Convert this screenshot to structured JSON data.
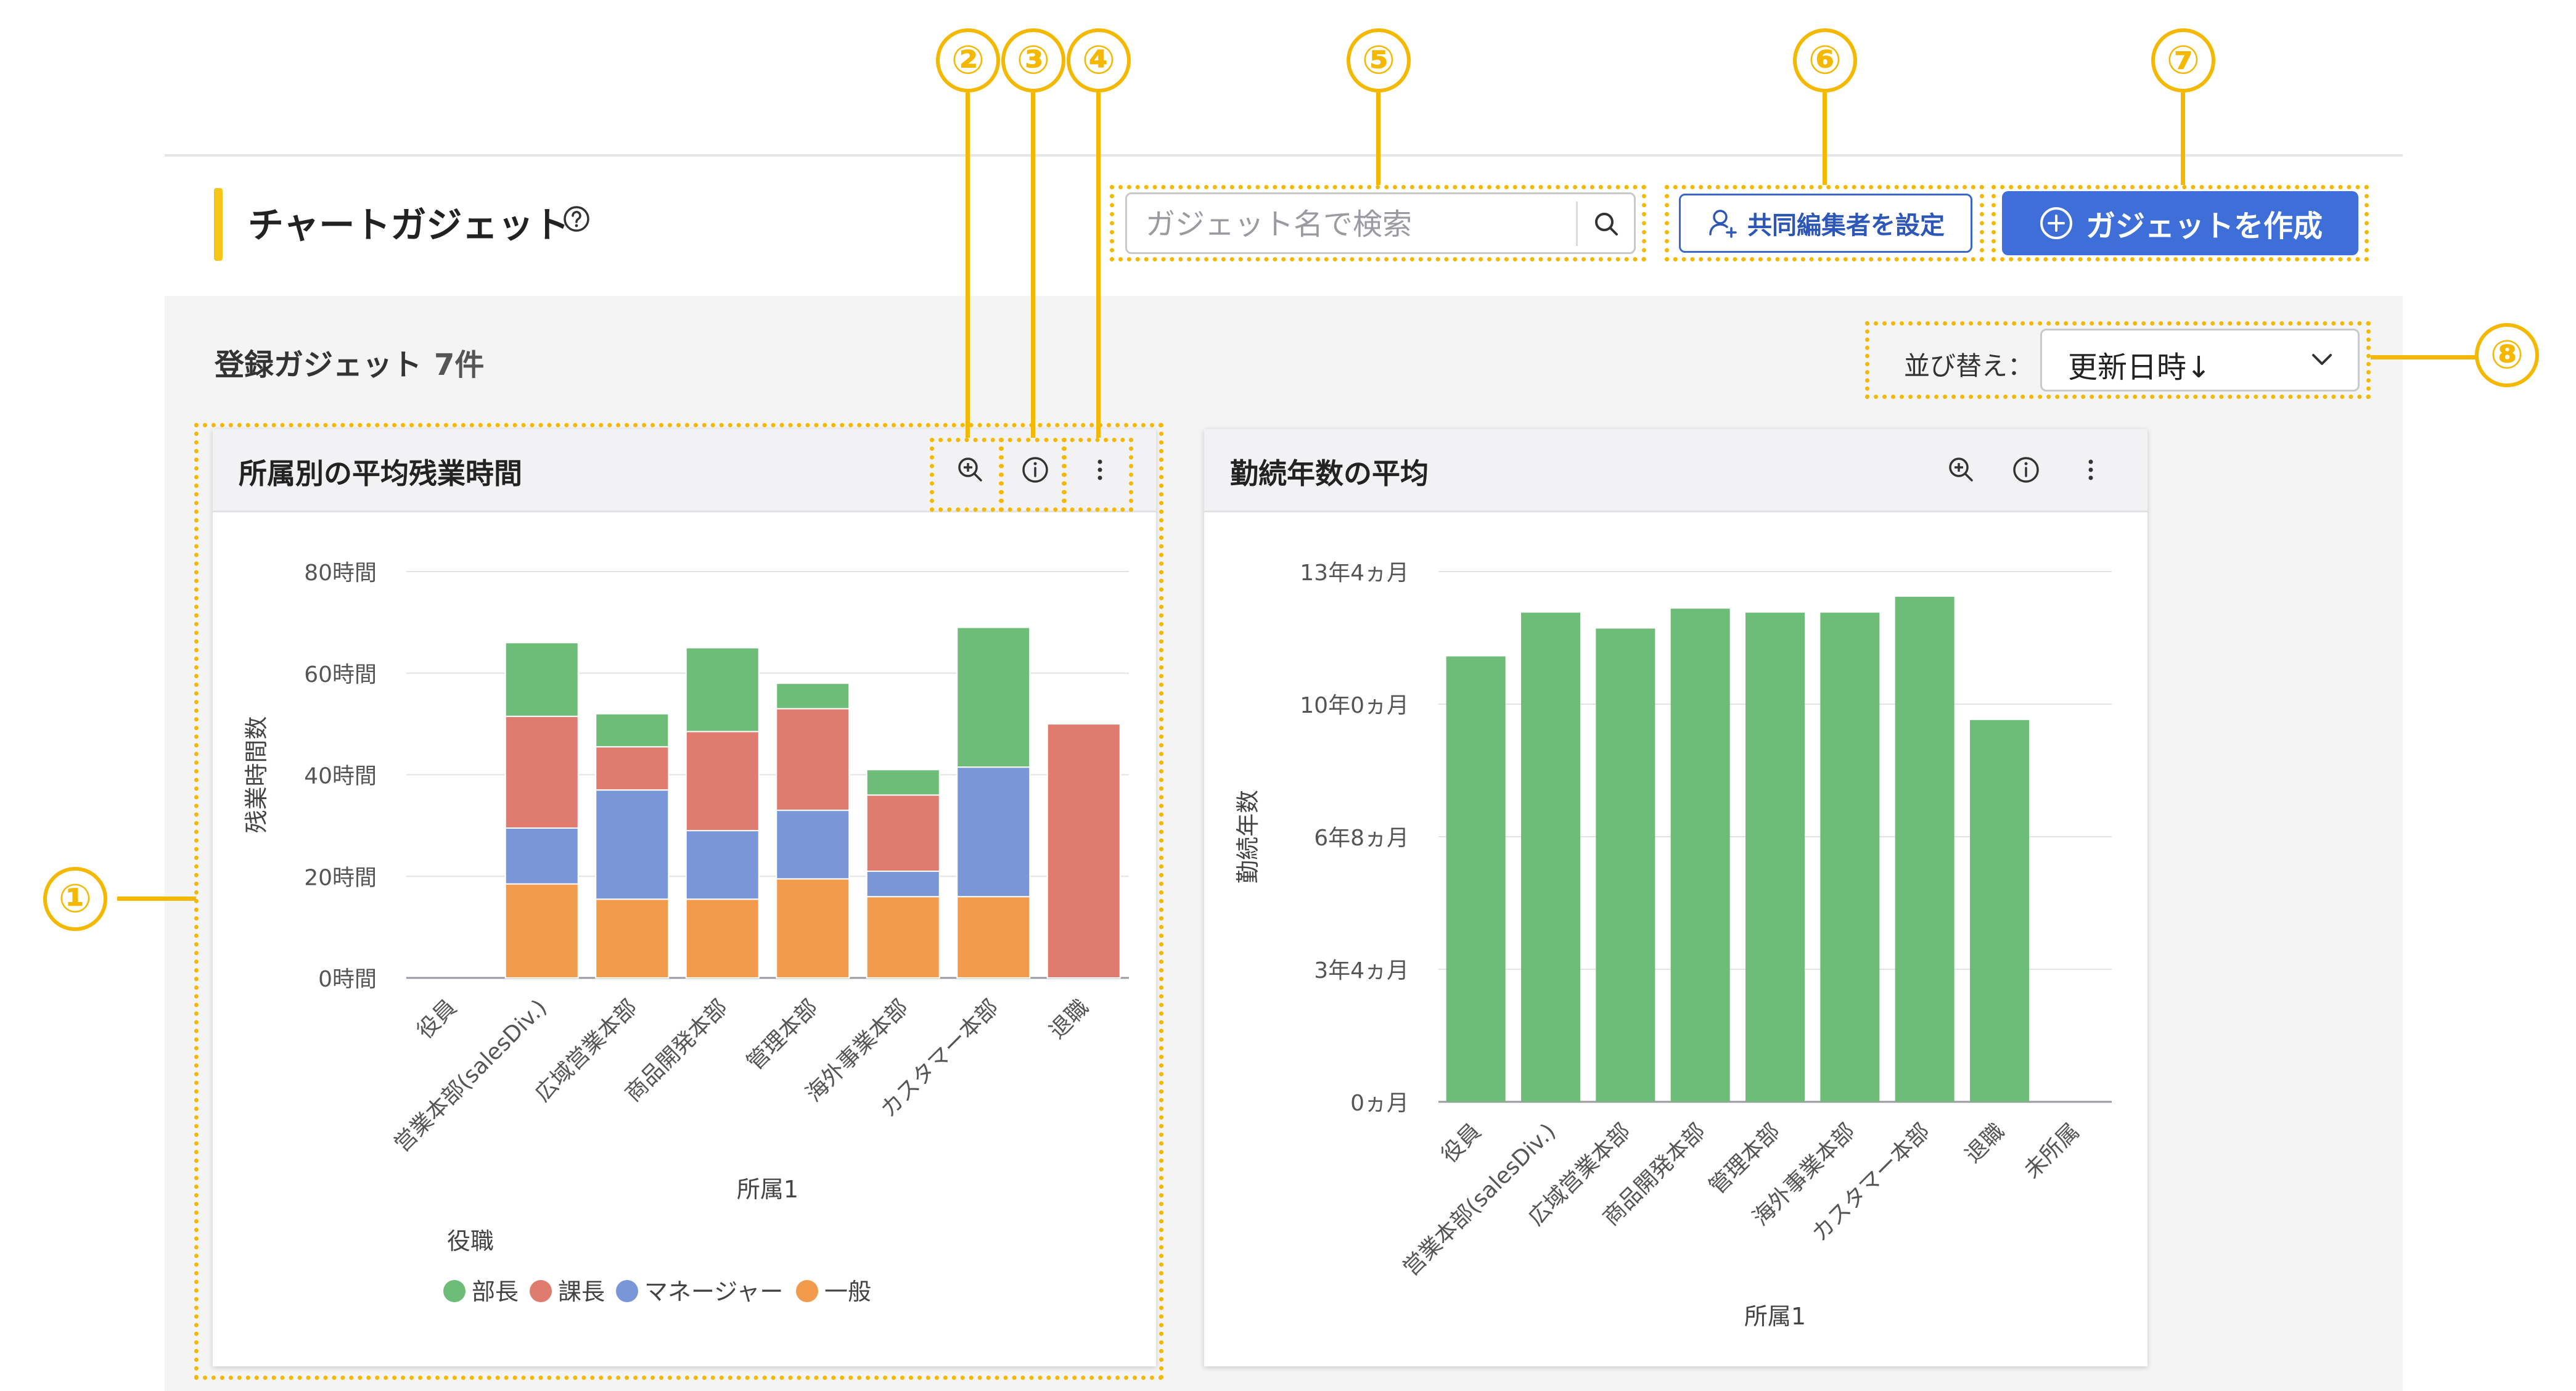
{
  "header": {
    "title": "チャートガジェット",
    "search_placeholder": "ガジェット名で検索",
    "coedit_label": "共同編集者を設定",
    "create_label": "ガジェットを作成"
  },
  "toolbar": {
    "registered_label": "登録ガジェット",
    "registered_count": "7件",
    "sort_label": "並び替え：",
    "sort_value": "更新日時↓"
  },
  "callouts": [
    "①",
    "②",
    "③",
    "④",
    "⑤",
    "⑥",
    "⑦",
    "⑧"
  ],
  "colors": {
    "accent": "#f5c518",
    "primary": "#3e6fd8",
    "annotation": "#f5b800",
    "green": "#6dbd78",
    "red": "#e07b70",
    "blue": "#7996d8",
    "orange": "#f39b4c"
  },
  "cards": [
    {
      "title": "所属別の平均残業時間"
    },
    {
      "title": "勤続年数の平均"
    }
  ],
  "chart_data": [
    {
      "type": "bar",
      "stacked": true,
      "categories": [
        "役員",
        "営業本部(salesDiv.)",
        "広域営業本部",
        "商品開発本部",
        "管理本部",
        "海外事業本部",
        "カスタマー本部",
        "退職"
      ],
      "series": [
        {
          "name": "一般",
          "color": "#f39b4c",
          "values": [
            0,
            18.5,
            15.5,
            15.5,
            19.5,
            16,
            16,
            0
          ]
        },
        {
          "name": "マネージャー",
          "color": "#7996d8",
          "values": [
            0,
            11,
            21.5,
            13.5,
            13.5,
            5,
            25.5,
            0
          ]
        },
        {
          "name": "課長",
          "color": "#e07b70",
          "values": [
            0,
            22,
            8.5,
            19.5,
            20,
            15,
            0,
            50
          ]
        },
        {
          "name": "部長",
          "color": "#6dbd78",
          "values": [
            0,
            14.5,
            6.5,
            16.5,
            5,
            5,
            27.5,
            0
          ]
        }
      ],
      "yticks": [
        "0時間",
        "20時間",
        "40時間",
        "60時間",
        "80時間"
      ],
      "ylim": [
        0,
        80
      ],
      "xlabel": "所属1",
      "ylabel": "残業時間数",
      "legend_title": "役職",
      "legend": [
        "部長",
        "課長",
        "マネージャー",
        "一般"
      ],
      "grid": true
    },
    {
      "type": "bar",
      "categories": [
        "役員",
        "営業本部(salesDiv.)",
        "広域営業本部",
        "商品開発本部",
        "管理本部",
        "海外事業本部",
        "カスタマー本部",
        "退職",
        "未所属"
      ],
      "values": [
        11.2,
        12.3,
        11.9,
        12.4,
        12.3,
        12.3,
        12.7,
        9.6,
        0
      ],
      "color": "#6dbd78",
      "yticks": [
        "0ヵ月",
        "3年4ヵ月",
        "6年8ヵ月",
        "10年0ヵ月",
        "13年4ヵ月"
      ],
      "ylim": [
        0,
        13.333
      ],
      "xlabel": "所属1",
      "ylabel": "勤続年数",
      "grid": true
    }
  ]
}
